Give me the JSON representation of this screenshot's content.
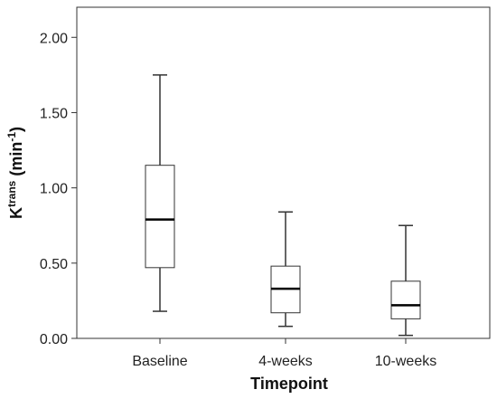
{
  "chart_data": {
    "type": "box",
    "xlabel": "Timepoint",
    "ylabel": {
      "base": "K",
      "sup": "trans",
      "unit_open": " (min",
      "unit_sup": "-1",
      "unit_close": ")"
    },
    "ylim": [
      0,
      2.2
    ],
    "yticks": [
      "0.00",
      "0.50",
      "1.00",
      "1.50",
      "2.00"
    ],
    "grid": false,
    "categories": [
      "Baseline",
      "4-weeks",
      "10-weeks"
    ],
    "boxes": [
      {
        "category": "Baseline",
        "whisker_low": 0.18,
        "q1": 0.47,
        "median": 0.79,
        "q3": 1.15,
        "whisker_high": 1.75
      },
      {
        "category": "4-weeks",
        "whisker_low": 0.08,
        "q1": 0.17,
        "median": 0.33,
        "q3": 0.48,
        "whisker_high": 0.84
      },
      {
        "category": "10-weeks",
        "whisker_low": 0.02,
        "q1": 0.13,
        "median": 0.22,
        "q3": 0.38,
        "whisker_high": 0.75
      }
    ]
  },
  "colors": {
    "box_edge": "#333333",
    "box_fill": "#ffffff",
    "median": "#000000",
    "frame": "#333333"
  }
}
